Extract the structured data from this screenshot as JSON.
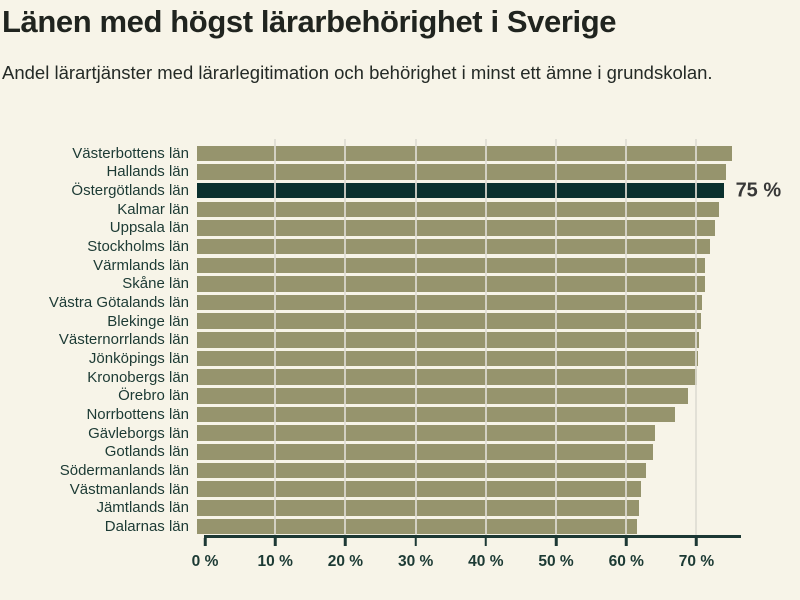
{
  "page": {
    "background": "#f7f4e8"
  },
  "header": {
    "title": "Länen med högst lärarbehörighet i Sverige",
    "subtitle": "Andel lärartjänster med lärarlegitimation och behörighet i minst ett ämne i grundskolan."
  },
  "chart_data": {
    "type": "bar",
    "orientation": "horizontal",
    "title": "Länen med högst lärarbehörighet i Sverige",
    "subtitle": "Andel lärartjänster med lärarlegitimation och behörighet i minst ett ämne i grundskolan.",
    "categories": [
      "Västerbottens län",
      "Hallands län",
      "Östergötlands län",
      "Kalmar län",
      "Uppsala län",
      "Stockholms län",
      "Värmlands län",
      "Skåne län",
      "Västra Götalands län",
      "Blekinge län",
      "Västernorrlands län",
      "Jönköpings län",
      "Kronobergs län",
      "Örebro län",
      "Norrbottens län",
      "Gävleborgs län",
      "Gotlands län",
      "Södermanlands län",
      "Västmanlands län",
      "Jämtlands län",
      "Dalarnas län"
    ],
    "values": [
      76.2,
      75.3,
      75.0,
      74.3,
      73.8,
      73.0,
      72.4,
      72.3,
      71.9,
      71.8,
      71.5,
      71.3,
      71.2,
      69.9,
      68.1,
      65.3,
      65.0,
      64.0,
      63.2,
      63.0,
      62.6
    ],
    "unit": "%",
    "highlight": {
      "index": 2,
      "category": "Östergötlands län",
      "value_label": "75 %"
    },
    "xlim": [
      0,
      76.2
    ],
    "xticks": [
      {
        "value": 0,
        "label": "0 %"
      },
      {
        "value": 10,
        "label": "10 %"
      },
      {
        "value": 20,
        "label": "20 %"
      },
      {
        "value": 30,
        "label": "30 %"
      },
      {
        "value": 40,
        "label": "40 %"
      },
      {
        "value": 50,
        "label": "50 %"
      },
      {
        "value": 60,
        "label": "60 %"
      },
      {
        "value": 70,
        "label": "70 %"
      }
    ],
    "grid": true,
    "legend": false,
    "colors": {
      "background": "#f7f4e8",
      "bar": "#96946d",
      "highlight_bar": "#0a302e",
      "axis": "#1c3834",
      "gridline": "#dedcd2",
      "category_label": "#1c3a34",
      "tick_label": "#1c3a34",
      "title": "#20241f",
      "subtitle": "#242a26",
      "value_label": "#383838"
    }
  }
}
